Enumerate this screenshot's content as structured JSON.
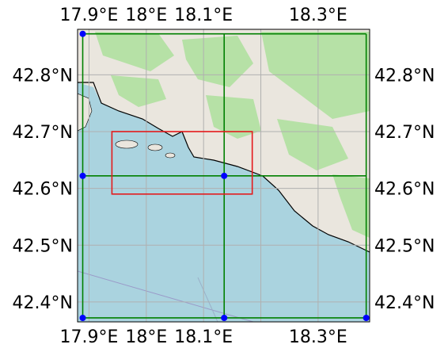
{
  "chart_data": {
    "type": "map",
    "projection": "PlateCarree",
    "extent": {
      "lon": [
        17.88,
        18.39
      ],
      "lat": [
        42.365,
        42.88
      ]
    },
    "xticks": [
      {
        "value": 17.9,
        "label": "17.9°E"
      },
      {
        "value": 18.0,
        "label": "18°E"
      },
      {
        "value": 18.1,
        "label": "18.1°E"
      },
      {
        "value": 18.3,
        "label": "18.3°E"
      }
    ],
    "yticks": [
      {
        "value": 42.8,
        "label": "42.8°N"
      },
      {
        "value": 42.7,
        "label": "42.7°N"
      },
      {
        "value": 42.6,
        "label": "42.6°N"
      },
      {
        "value": 42.5,
        "label": "42.5°N"
      },
      {
        "value": 42.4,
        "label": "42.4°N"
      }
    ],
    "gridlines": {
      "lon": [
        17.9,
        18.0,
        18.1,
        18.2,
        18.3
      ],
      "lat": [
        42.4,
        42.5,
        42.6,
        42.7,
        42.8
      ]
    },
    "grid": true,
    "colors": {
      "sea": "#aad3df",
      "land": "#eae6de",
      "forest": "#addf9c",
      "green_lines": "#008000",
      "red_box": "#e41a1c",
      "points": "#0000ff",
      "coastline": "#000000"
    },
    "green_grid": {
      "lon": [
        17.889,
        18.136,
        18.384
      ],
      "lat": [
        42.372,
        42.622,
        42.872
      ]
    },
    "red_box": {
      "lon": [
        17.94,
        18.185
      ],
      "lat": [
        42.59,
        42.7
      ]
    },
    "points": [
      {
        "lon": 17.889,
        "lat": 42.872
      },
      {
        "lon": 17.889,
        "lat": 42.622
      },
      {
        "lon": 18.136,
        "lat": 42.622
      },
      {
        "lon": 17.889,
        "lat": 42.372
      },
      {
        "lon": 18.136,
        "lat": 42.372
      },
      {
        "lon": 18.384,
        "lat": 42.372
      }
    ]
  }
}
